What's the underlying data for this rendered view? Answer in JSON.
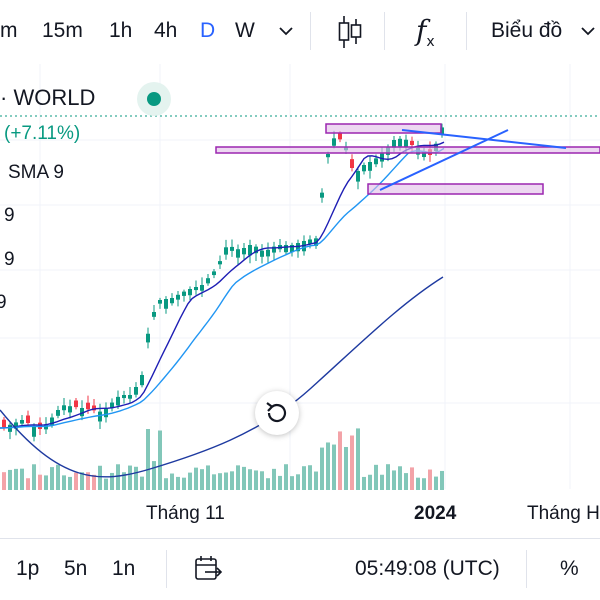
{
  "toolbar": {
    "timeframes": [
      "m",
      "15m",
      "1h",
      "4h",
      "D",
      "W"
    ],
    "active_timeframe": "D",
    "indicators_icon_label": "f",
    "indicators_icon_sub": "x",
    "chart_type_label": "Biểu đồ"
  },
  "legend": {
    "symbol": "· WORLD",
    "change": "(+7.11%)",
    "indicator": "SMA 9",
    "ind_vals": [
      "9",
      "9",
      "9"
    ]
  },
  "x_axis": {
    "labels": [
      "Tháng 11",
      "2024",
      "Tháng H"
    ]
  },
  "bottom": {
    "ranges": [
      "1p",
      "5n",
      "1n"
    ],
    "time": "05:49:08 (UTC)",
    "percent": "%"
  },
  "colors": {
    "up": "#089981",
    "down": "#f23645",
    "vol_up": "#82c7b9",
    "vol_down": "#f3a3a8",
    "sma_fast": "#1e1eb4",
    "sma_mid": "#2196f3",
    "sma_slow": "#1e3aa0",
    "zone": "#9c27b0",
    "zone_fill": "#e1bee7",
    "trend": "#2962ff",
    "accent": "#2962ff"
  },
  "icons": [
    "chevron-down-icon",
    "candlestick-icon",
    "function-icon",
    "reset-chart-icon",
    "calendar-arrow-icon"
  ]
}
